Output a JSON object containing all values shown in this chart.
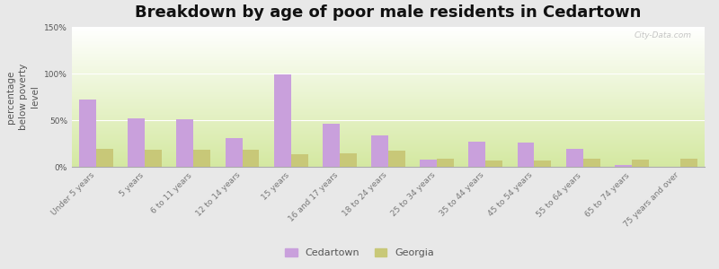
{
  "title": "Breakdown by age of poor male residents in Cedartown",
  "ylabel": "percentage\nbelow poverty\nlevel",
  "categories": [
    "Under 5 years",
    "5 years",
    "6 to 11 years",
    "12 to 14 years",
    "15 years",
    "16 and 17 years",
    "18 to 24 years",
    "25 to 34 years",
    "35 to 44 years",
    "45 to 54 years",
    "55 to 64 years",
    "65 to 74 years",
    "75 years and over"
  ],
  "cedartown": [
    72,
    52,
    51,
    31,
    99,
    46,
    34,
    8,
    27,
    26,
    19,
    2,
    0
  ],
  "georgia": [
    19,
    18,
    18,
    18,
    13,
    14,
    17,
    9,
    7,
    7,
    9,
    8,
    9
  ],
  "cedartown_color": "#c9a0dc",
  "georgia_color": "#c8c878",
  "ylim": [
    0,
    150
  ],
  "yticks": [
    0,
    50,
    100,
    150
  ],
  "ytick_labels": [
    "0%",
    "50%",
    "100%",
    "150%"
  ],
  "bg_color_top": "#ffffff",
  "bg_color_bottom": "#d4e8a0",
  "bar_width": 0.35,
  "title_fontsize": 13,
  "label_fontsize": 7.5,
  "tick_fontsize": 6.5,
  "watermark": "City-Data.com",
  "outer_bg": "#e8e8e8",
  "fig_bg": "#e0e0e0"
}
